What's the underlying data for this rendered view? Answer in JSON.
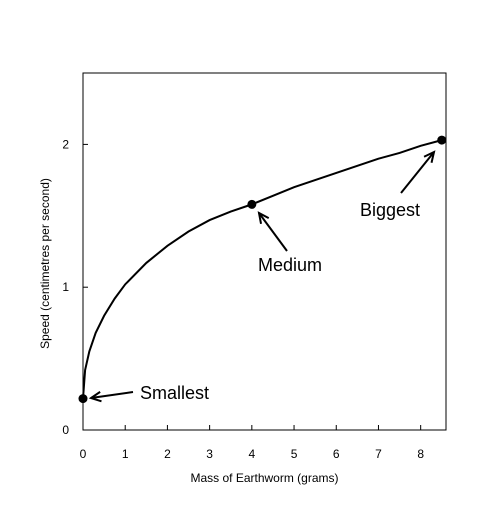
{
  "chart_data": {
    "type": "line",
    "xlabel": "Mass of Earthworm (grams)",
    "ylabel": "Speed (centimetres per second)",
    "xlim": [
      0,
      8.6
    ],
    "ylim": [
      0,
      2.5
    ],
    "x_ticks": [
      "0",
      "1",
      "2",
      "3",
      "4",
      "5",
      "6",
      "7",
      "8"
    ],
    "y_ticks": [
      "0",
      "1",
      "2"
    ],
    "grid": false,
    "series": [
      {
        "x": [
          0,
          0.05,
          0.15,
          0.3,
          0.5,
          0.75,
          1.0,
          1.5,
          2.0,
          2.5,
          3.0,
          3.5,
          4.0,
          4.5,
          5.0,
          5.5,
          6.0,
          6.5,
          7.0,
          7.5,
          8.0,
          8.5
        ],
        "values": [
          0.22,
          0.42,
          0.55,
          0.68,
          0.8,
          0.92,
          1.02,
          1.17,
          1.29,
          1.39,
          1.47,
          1.53,
          1.58,
          1.64,
          1.7,
          1.75,
          1.8,
          1.85,
          1.9,
          1.94,
          1.99,
          2.03
        ]
      }
    ],
    "points": [
      {
        "label": "Smallest",
        "x": 0,
        "y": 0.22
      },
      {
        "label": "Medium",
        "x": 4.0,
        "y": 1.58
      },
      {
        "label": "Biggest",
        "x": 8.5,
        "y": 2.03
      }
    ]
  }
}
